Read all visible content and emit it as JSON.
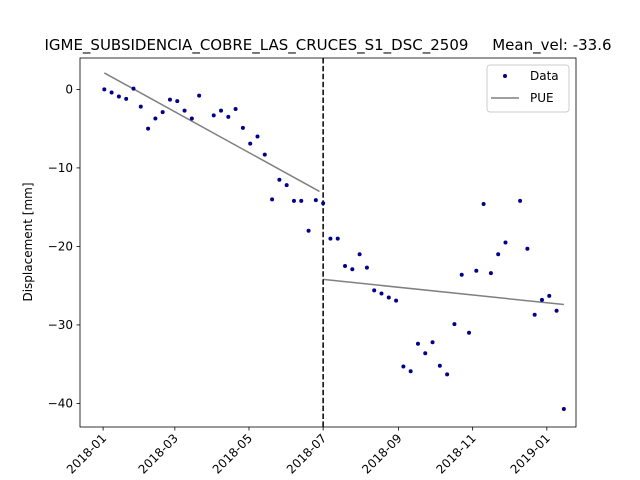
{
  "chart_data": {
    "type": "scatter",
    "title": "IGME_SUBSIDENCIA_COBRE_LAS_CRUCES_S1_DSC_2509     Mean_vel: -33.6",
    "ylabel": "Displacement [mm]",
    "xlabel": "",
    "xlim": [
      "2017-12-13",
      "2019-01-25"
    ],
    "ylim": [
      -43,
      4
    ],
    "x_ticks": [
      "2018-01-01",
      "2018-03-01",
      "2018-05-01",
      "2018-07-01",
      "2018-09-01",
      "2018-11-01",
      "2019-01-01"
    ],
    "x_tick_labels": [
      "2018-01",
      "2018-03",
      "2018-05",
      "2018-07",
      "2018-09",
      "2018-11",
      "2019-01"
    ],
    "y_ticks": [
      0,
      -10,
      -20,
      -30,
      -40
    ],
    "y_tick_labels": [
      "0",
      "−10",
      "−20",
      "−30",
      "−40"
    ],
    "grid": false,
    "legend": {
      "placement": "top-right",
      "entries": [
        "Data",
        "PUE"
      ]
    },
    "series": [
      {
        "name": "Data",
        "kind": "points",
        "color": "#00008b",
        "x": [
          "2018-01-02",
          "2018-01-08",
          "2018-01-14",
          "2018-01-20",
          "2018-01-26",
          "2018-02-01",
          "2018-02-07",
          "2018-02-13",
          "2018-02-19",
          "2018-02-25",
          "2018-03-03",
          "2018-03-09",
          "2018-03-15",
          "2018-03-21",
          "2018-04-02",
          "2018-04-08",
          "2018-04-14",
          "2018-04-20",
          "2018-04-26",
          "2018-05-02",
          "2018-05-08",
          "2018-05-14",
          "2018-05-20",
          "2018-05-26",
          "2018-06-01",
          "2018-06-07",
          "2018-06-13",
          "2018-06-19",
          "2018-06-25",
          "2018-07-01",
          "2018-07-07",
          "2018-07-13",
          "2018-07-19",
          "2018-07-25",
          "2018-07-31",
          "2018-08-06",
          "2018-08-12",
          "2018-08-18",
          "2018-08-24",
          "2018-08-30",
          "2018-09-05",
          "2018-09-11",
          "2018-09-17",
          "2018-09-23",
          "2018-09-29",
          "2018-10-05",
          "2018-10-11",
          "2018-10-17",
          "2018-10-23",
          "2018-10-29",
          "2018-11-04",
          "2018-11-10",
          "2018-11-16",
          "2018-11-22",
          "2018-11-28",
          "2018-12-10",
          "2018-12-16",
          "2018-12-22",
          "2018-12-28",
          "2019-01-03",
          "2019-01-09",
          "2019-01-15"
        ],
        "y": [
          0.0,
          -0.4,
          -0.9,
          -1.2,
          0.1,
          -2.2,
          -5.0,
          -3.7,
          -2.9,
          -1.3,
          -1.5,
          -2.7,
          -3.7,
          -0.8,
          -3.3,
          -2.7,
          -3.5,
          -2.5,
          -4.9,
          -6.9,
          -6.0,
          -8.3,
          -14.0,
          -11.5,
          -12.2,
          -14.2,
          -14.2,
          -18.0,
          -14.1,
          -14.5,
          -19.0,
          -19.0,
          -22.5,
          -22.9,
          -21.0,
          -22.7,
          -25.6,
          -26.0,
          -26.5,
          -26.9,
          -35.3,
          -35.9,
          -32.4,
          -33.6,
          -32.2,
          -35.2,
          -36.3,
          -29.9,
          -23.6,
          -31.0,
          -23.1,
          -14.6,
          -23.4,
          -21.0,
          -19.5,
          -14.2,
          -20.3,
          -28.7,
          -26.8,
          -26.3,
          -28.2,
          -40.7
        ]
      },
      {
        "name": "PUE",
        "kind": "segments",
        "color": "#808080",
        "segments": [
          {
            "x": [
              "2018-01-02",
              "2018-06-28"
            ],
            "y": [
              2.1,
              -13.0
            ]
          },
          {
            "x": [
              "2018-07-01",
              "2019-01-15"
            ],
            "y": [
              -24.2,
              -27.4
            ]
          }
        ]
      }
    ],
    "annotations": [
      {
        "type": "vline",
        "x": "2018-07-01",
        "style": "dashed",
        "color": "#000000"
      }
    ]
  }
}
